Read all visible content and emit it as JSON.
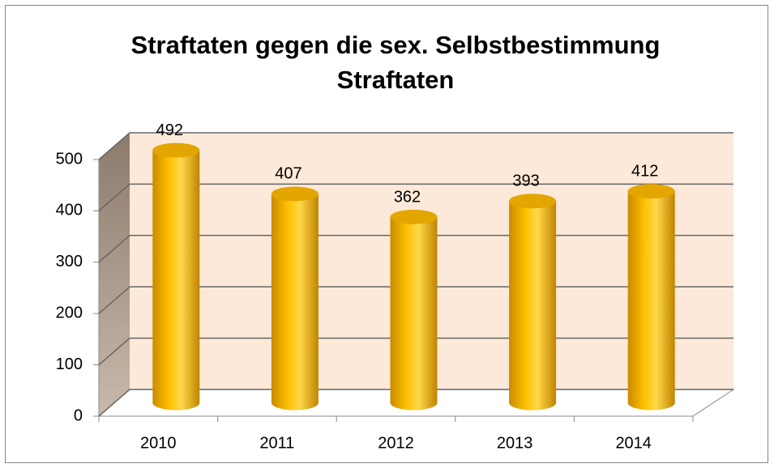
{
  "chart_data": {
    "type": "bar",
    "title": [
      "Straftaten gegen die sex. Selbstbestimmung",
      "Straftaten"
    ],
    "categories": [
      "2010",
      "2011",
      "2012",
      "2013",
      "2014"
    ],
    "values": [
      492,
      407,
      362,
      393,
      412
    ],
    "color": "#ffc000",
    "ylim": [
      0,
      500
    ],
    "yticks": [
      0,
      100,
      200,
      300,
      400,
      500
    ],
    "grid": true
  }
}
